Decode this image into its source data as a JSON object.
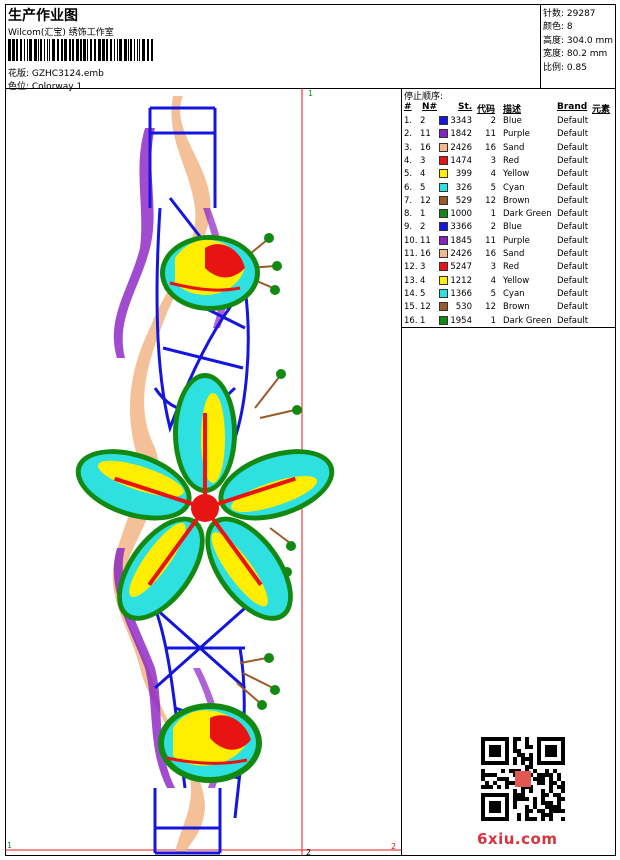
{
  "header": {
    "title": "生产作业图",
    "company": "Wilcom(汇宝) 绣饰工作室",
    "design": "花版:  GZHC3124.emb",
    "colorway": "色位:  Colorway 1"
  },
  "stats": [
    "针数: 29287",
    "颜色: 8",
    "高度: 304.0 mm",
    "宽度: 80.2 mm",
    "比例: 0.85"
  ],
  "canvas": {
    "corner_top": "1",
    "corner_bottom_left": "1",
    "corner_bottom_mid": "2",
    "corner_bottom_right": "2"
  },
  "stops": {
    "title": "停止顺序:",
    "headers": {
      "idx": "#",
      "no": "N#",
      "st": "St.",
      "code": "代码",
      "desc": "描述",
      "brand": "Brand",
      "elem": "元素"
    },
    "rows": [
      {
        "idx": "1.",
        "no": "2",
        "color": "#1515e0",
        "st": "3343",
        "code": "2",
        "desc": "Blue",
        "brand": "Default"
      },
      {
        "idx": "2.",
        "no": "11",
        "color": "#8a1fc4",
        "st": "1842",
        "code": "11",
        "desc": "Purple",
        "brand": "Default"
      },
      {
        "idx": "3.",
        "no": "16",
        "color": "#f2b98c",
        "st": "2426",
        "code": "16",
        "desc": "Sand",
        "brand": "Default"
      },
      {
        "idx": "4.",
        "no": "3",
        "color": "#e81414",
        "st": "1474",
        "code": "3",
        "desc": "Red",
        "brand": "Default"
      },
      {
        "idx": "5.",
        "no": "4",
        "color": "#ffee00",
        "st": "399",
        "code": "4",
        "desc": "Yellow",
        "brand": "Default"
      },
      {
        "idx": "6.",
        "no": "5",
        "color": "#2ee0e0",
        "st": "326",
        "code": "5",
        "desc": "Cyan",
        "brand": "Default"
      },
      {
        "idx": "7.",
        "no": "12",
        "color": "#9a5a2a",
        "st": "529",
        "code": "12",
        "desc": "Brown",
        "brand": "Default"
      },
      {
        "idx": "8.",
        "no": "1",
        "color": "#128a12",
        "st": "1000",
        "code": "1",
        "desc": "Dark Green",
        "brand": "Default"
      },
      {
        "idx": "9.",
        "no": "2",
        "color": "#1515e0",
        "st": "3366",
        "code": "2",
        "desc": "Blue",
        "brand": "Default"
      },
      {
        "idx": "10.",
        "no": "11",
        "color": "#8a1fc4",
        "st": "1845",
        "code": "11",
        "desc": "Purple",
        "brand": "Default"
      },
      {
        "idx": "11.",
        "no": "16",
        "color": "#f2b98c",
        "st": "2426",
        "code": "16",
        "desc": "Sand",
        "brand": "Default"
      },
      {
        "idx": "12.",
        "no": "3",
        "color": "#e81414",
        "st": "5247",
        "code": "3",
        "desc": "Red",
        "brand": "Default"
      },
      {
        "idx": "13.",
        "no": "4",
        "color": "#ffee00",
        "st": "1212",
        "code": "4",
        "desc": "Yellow",
        "brand": "Default"
      },
      {
        "idx": "14.",
        "no": "5",
        "color": "#2ee0e0",
        "st": "1366",
        "code": "5",
        "desc": "Cyan",
        "brand": "Default"
      },
      {
        "idx": "15.",
        "no": "12",
        "color": "#9a5a2a",
        "st": "530",
        "code": "12",
        "desc": "Brown",
        "brand": "Default"
      },
      {
        "idx": "16.",
        "no": "1",
        "color": "#128a12",
        "st": "1954",
        "code": "1",
        "desc": "Dark Green",
        "brand": "Default"
      }
    ]
  },
  "watermark": {
    "site": "6xiu.com"
  }
}
